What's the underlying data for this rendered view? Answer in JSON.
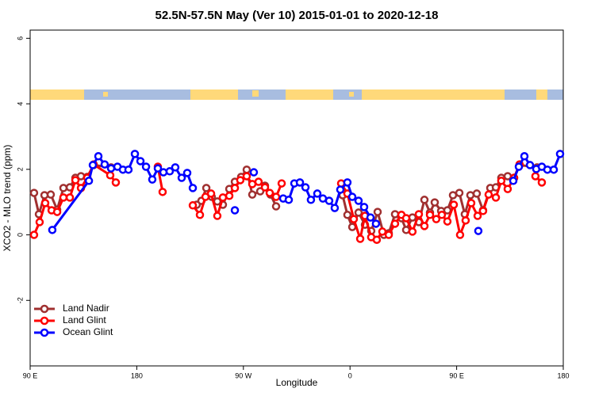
{
  "chart_data": {
    "type": "line",
    "title": "52.5N-57.5N May (Ver 10)   2015-01-01 to 2020-12-18",
    "x_label": "Longitude",
    "y_label": "XCO2 - MLO trend (ppm)",
    "xlim": [
      90,
      540
    ],
    "xticks": [
      {
        "value": 90,
        "label": "90 E"
      },
      {
        "value": 180,
        "label": "180"
      },
      {
        "value": 270,
        "label": "90 W"
      },
      {
        "value": 360,
        "label": "0"
      },
      {
        "value": 450,
        "label": "90 E"
      },
      {
        "value": 540,
        "label": "180"
      }
    ],
    "ylim": [
      -4,
      6.25
    ],
    "yticks": [
      -2,
      0,
      2,
      4,
      6
    ],
    "legend": "bottom-left",
    "series": [
      {
        "name": "Land Nadir",
        "color": "#a03030",
        "x": [
          93.3,
          97.4,
          102.1,
          107.4,
          112.8,
          118.1,
          123.5,
          128.2,
          132.9,
          138.2,
          143.6,
          158.3,
          null,
          230.6,
          234.6,
          238.7,
          243.3,
          248.0,
          252.7,
          258.1,
          262.8,
          268.1,
          272.8,
          277.5,
          284.2,
          288.2,
          292.9,
          297.6,
          null,
          353.8,
          357.8,
          361.9,
          367.2,
          372.6,
          377.9,
          383.3,
          388.6,
          392.7,
          398.0,
          403.4,
          407.4,
          412.7,
          418.1,
          422.8,
          427.5,
          431.5,
          436.9,
          442.2,
          446.9,
          452.3,
          456.9,
          461.6,
          467.0,
          472.3,
          478.4,
          483.1,
          487.7,
          493.1,
          498.5,
          503.1,
          517.9
        ],
        "values": [
          1.28,
          0.63,
          1.21,
          1.23,
          0.77,
          1.43,
          1.45,
          1.74,
          1.79,
          1.77,
          2.13,
          2.06,
          null,
          0.92,
          1.04,
          1.43,
          1.16,
          1.02,
          0.92,
          1.4,
          1.62,
          1.77,
          1.99,
          1.23,
          1.33,
          1.5,
          1.23,
          0.87,
          null,
          1.21,
          0.61,
          0.24,
          0.68,
          0.31,
          0.12,
          0.7,
          0,
          0.05,
          0.63,
          0.51,
          0.15,
          0.53,
          0.39,
          1.07,
          0.68,
          0.99,
          0.73,
          0.75,
          1.21,
          1.28,
          0.63,
          1.21,
          1.26,
          0.75,
          1.43,
          1.45,
          1.74,
          1.79,
          1.74,
          2.13,
          2.06
        ]
      },
      {
        "name": "Land Glint",
        "color": "#ff0000",
        "x": [
          93.3,
          98.0,
          102.7,
          108.1,
          112.8,
          118.1,
          123.5,
          128.2,
          132.9,
          138.2,
          143.6,
          157.6,
          162.3,
          null,
          197.8,
          201.8,
          null,
          227.3,
          233.3,
          238.0,
          242.7,
          248.0,
          252.7,
          258.1,
          262.8,
          267.4,
          272.8,
          277.5,
          282.8,
          288.2,
          292.2,
          297.6,
          302.3,
          null,
          352.5,
          357.8,
          363.2,
          368.6,
          372.6,
          377.9,
          382.6,
          387.3,
          392.7,
          398.0,
          403.4,
          407.4,
          412.7,
          418.1,
          422.8,
          427.5,
          432.8,
          437.5,
          442.2,
          447.6,
          452.9,
          457.6,
          462.3,
          467.7,
          472.3,
          477.0,
          483.1,
          487.7,
          493.1,
          498.5,
          503.1,
          null,
          516.5,
          521.9
        ],
        "values": [
          0,
          0.39,
          0.97,
          0.75,
          0.7,
          1.14,
          1.14,
          1.67,
          1.43,
          1.74,
          2.15,
          1.82,
          1.6,
          null,
          2.08,
          1.31,
          null,
          0.9,
          0.61,
          1.16,
          1.26,
          0.58,
          1.14,
          1.19,
          1.43,
          1.67,
          1.79,
          1.55,
          1.62,
          1.45,
          1.28,
          1.16,
          1.57,
          null,
          1.57,
          1.26,
          0.48,
          -0.12,
          0.58,
          -0.07,
          -0.15,
          0.1,
          0,
          0.34,
          0.61,
          0.51,
          0.1,
          0.63,
          0.27,
          0.61,
          0.48,
          0.61,
          0.41,
          0.92,
          0,
          0.44,
          0.97,
          0.58,
          0.73,
          1.23,
          1.14,
          1.65,
          1.4,
          1.74,
          2.15,
          null,
          1.79,
          1.6
        ]
      },
      {
        "name": "Ocean Glint",
        "color": "#0000ff",
        "x": [
          108.7,
          139.6,
          142.9,
          147.6,
          152.9,
          158.3,
          163.7,
          168.3,
          173.0,
          178.4,
          183.1,
          187.8,
          193.1,
          197.8,
          202.5,
          207.8,
          212.5,
          217.9,
          222.6,
          227.3,
          null,
          262.8,
          null,
          278.8,
          null,
          303.6,
          308.3,
          313.0,
          317.7,
          322.4,
          327.0,
          332.4,
          337.1,
          342.4,
          347.1,
          351.8,
          357.8,
          361.9,
          367.2,
          371.9,
          377.3,
          381.9,
          null,
          468.3,
          null,
          497.8,
          502.5,
          507.2,
          511.9,
          517.2,
          521.9,
          526.6,
          532.0,
          537.3
        ],
        "values": [
          0.15,
          1.65,
          2.13,
          2.4,
          2.15,
          2.03,
          2.08,
          1.99,
          1.99,
          2.47,
          2.25,
          2.08,
          1.69,
          2.03,
          1.91,
          1.94,
          2.06,
          1.74,
          1.89,
          1.43,
          null,
          0.75,
          null,
          1.91,
          null,
          1.11,
          1.07,
          1.57,
          1.6,
          1.45,
          1.07,
          1.26,
          1.11,
          1.04,
          0.82,
          1.38,
          1.6,
          1.16,
          1.04,
          0.85,
          0.53,
          0.34,
          null,
          0.12,
          null,
          1.65,
          2.08,
          2.4,
          2.13,
          2.01,
          2.08,
          1.99,
          1.99,
          2.47
        ]
      }
    ]
  }
}
